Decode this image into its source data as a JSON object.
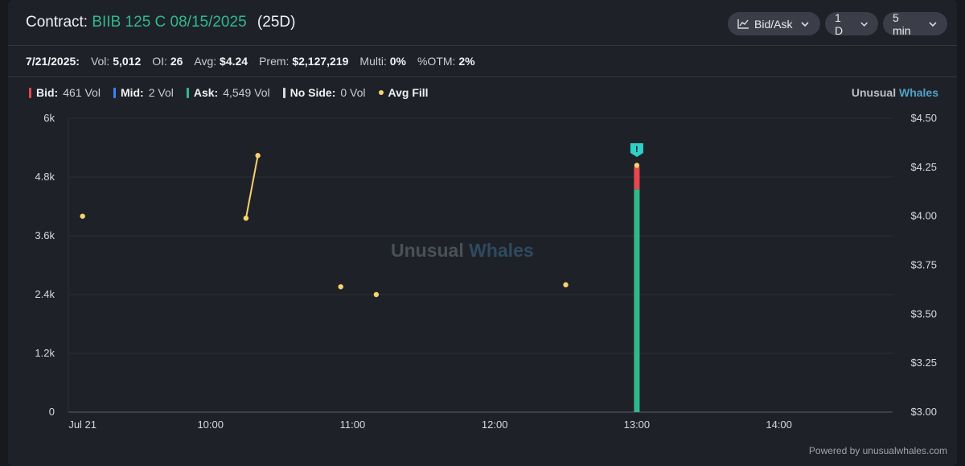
{
  "header": {
    "contract_label": "Contract:",
    "contract": "BIIB 125 C 08/15/2025",
    "dte": "(25D)",
    "controls": {
      "chart_mode": "Bid/Ask",
      "range": "1 D",
      "interval": "5 min"
    }
  },
  "stats": {
    "date": "7/21/2025:",
    "vol_label": "Vol:",
    "vol": "5,012",
    "oi_label": "OI:",
    "oi": "26",
    "avg_label": "Avg:",
    "avg": "$4.24",
    "prem_label": "Prem:",
    "prem": "$2,127,219",
    "multi_label": "Multi:",
    "multi": "0%",
    "otm_label": "%OTM:",
    "otm": "2%"
  },
  "legend": {
    "bid_label": "Bid:",
    "bid": "461 Vol",
    "mid_label": "Mid:",
    "mid": "2 Vol",
    "ask_label": "Ask:",
    "ask": "4,549 Vol",
    "noside_label": "No Side:",
    "noside": "0 Vol",
    "avgfill_label": "Avg Fill"
  },
  "brand": {
    "part1": "Unusual",
    "part2": "Whales"
  },
  "watermark": {
    "part1": "Unusual",
    "part2": "Whales"
  },
  "footer": {
    "powered": "Powered by unusualwhales.com"
  },
  "colors": {
    "bid": "#e5484d",
    "mid": "#3b82f6",
    "ask": "#2fb98b",
    "noside": "#d9dbe0",
    "avg_fill": "#f7d26e"
  },
  "chart_data": {
    "type": "bar",
    "x_ticks": [
      "Jul 21",
      "10:00",
      "11:00",
      "12:00",
      "13:00",
      "14:00"
    ],
    "x_range_minutes": [
      540,
      888
    ],
    "y_left": {
      "ticks": [
        "0",
        "1.2k",
        "2.4k",
        "3.6k",
        "4.8k",
        "6k"
      ],
      "range": [
        0,
        6000
      ]
    },
    "y_right": {
      "ticks": [
        "$3.00",
        "$3.25",
        "$3.50",
        "$3.75",
        "$4.00",
        "$4.25",
        "$4.50"
      ],
      "range": [
        3.0,
        4.5
      ]
    },
    "grid": true,
    "bars": [
      {
        "time_minutes": 780,
        "ask": 4549,
        "bid": 461,
        "mid": 2
      }
    ],
    "avg_fill_points": [
      {
        "time_minutes": 546,
        "price": 4.0
      },
      {
        "time_minutes": 615,
        "price": 3.99
      },
      {
        "time_minutes": 620,
        "price": 4.31
      },
      {
        "time_minutes": 655,
        "price": 3.64
      },
      {
        "time_minutes": 670,
        "price": 3.6
      },
      {
        "time_minutes": 750,
        "price": 3.65
      },
      {
        "time_minutes": 780,
        "price": 4.26
      }
    ],
    "avg_fill_lines": [
      [
        1,
        2
      ]
    ],
    "alert_marker": {
      "time_minutes": 780,
      "glyph": "!"
    }
  }
}
